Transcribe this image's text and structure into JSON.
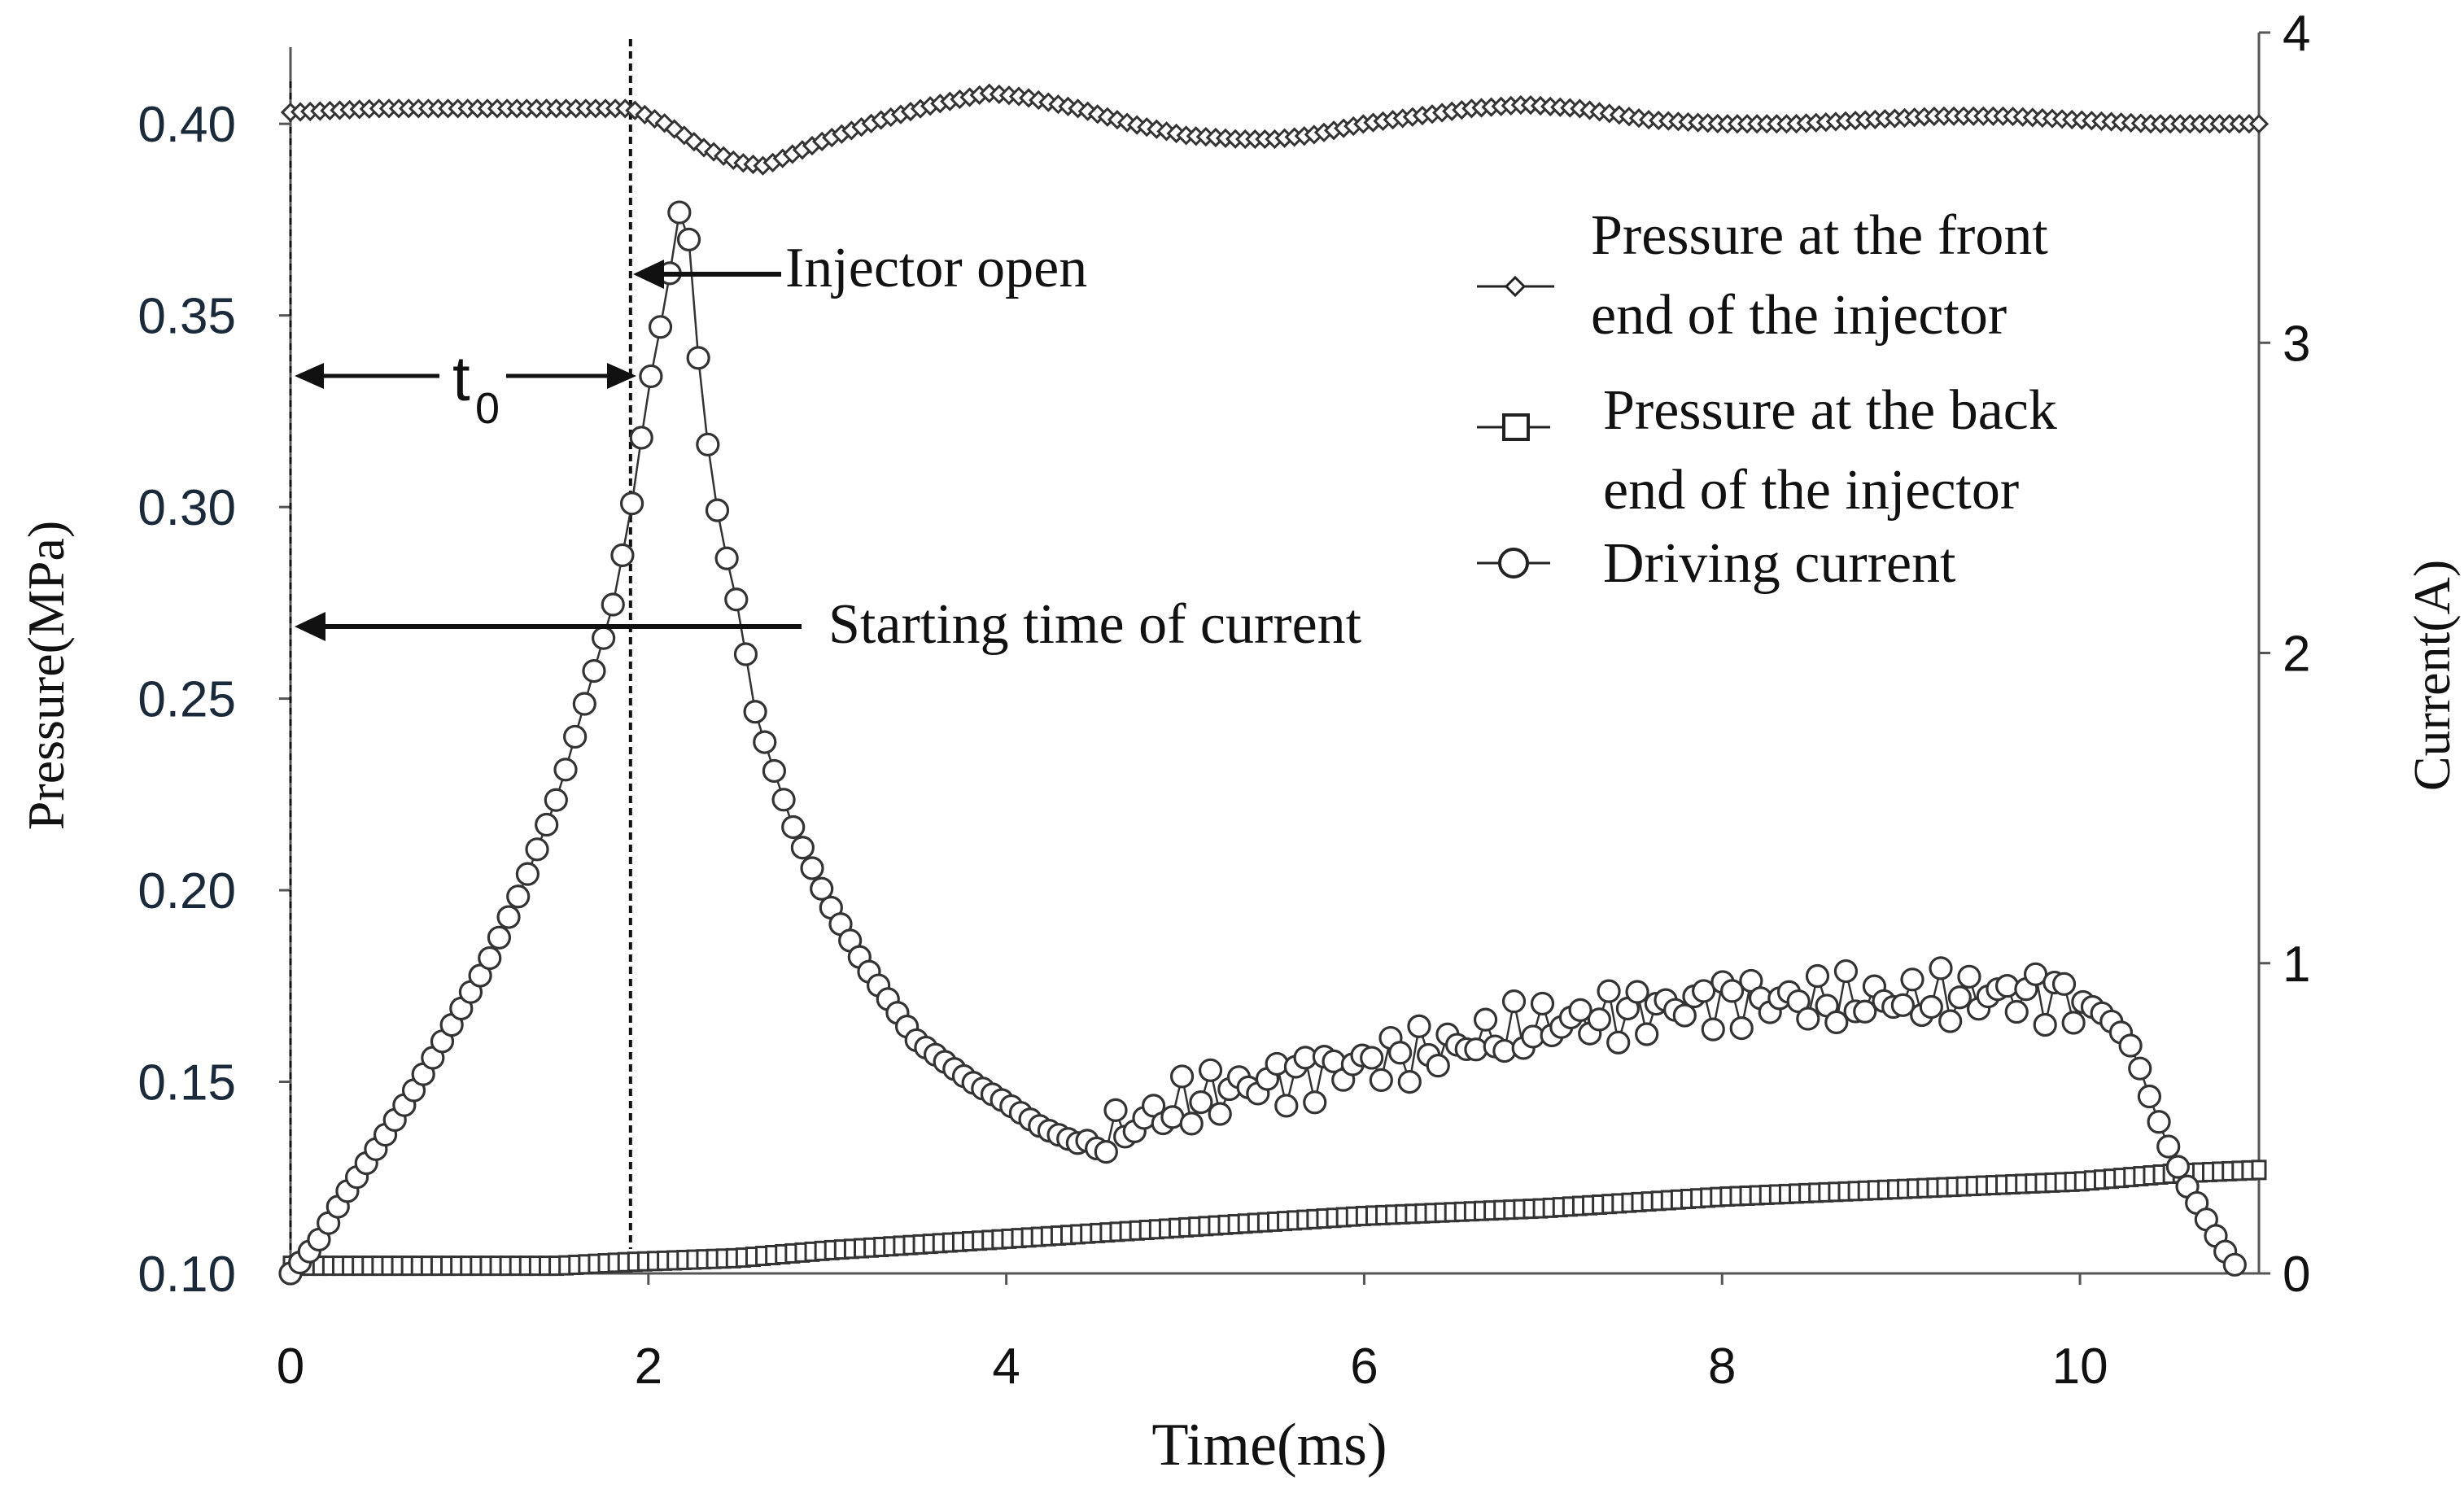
{
  "chart_data": {
    "type": "line",
    "title": "",
    "xlabel": "Time(ms)",
    "ylabel_left": "Pressure(MPa)",
    "ylabel_right": "Current(A)",
    "xlim": [
      0,
      11
    ],
    "ylim_left": [
      0.1,
      0.42
    ],
    "ylim_right": [
      0,
      4
    ],
    "x_ticks": [
      "0",
      "2",
      "4",
      "6",
      "8",
      "10"
    ],
    "y_left_ticks": [
      "0.10",
      "0.15",
      "0.20",
      "0.25",
      "0.30",
      "0.35",
      "0.40"
    ],
    "y_right_ticks": [
      "0",
      "1",
      "2",
      "3",
      "4"
    ],
    "grid": false,
    "legend_position": "top-right",
    "legend": [
      {
        "lines": [
          "Pressure at the front",
          "end of the injector"
        ],
        "marker": "diamond"
      },
      {
        "lines": [
          "Pressure at the back",
          "end of the injector"
        ],
        "marker": "square"
      },
      {
        "lines": [
          "Driving current"
        ],
        "marker": "circle"
      }
    ],
    "annotations": {
      "injector_open": "Injector open",
      "starting_time": "Starting time of current",
      "t0_main": "t",
      "t0_sub": "0",
      "starting_time_x": 0,
      "injector_open_x": 1.9
    },
    "series": [
      {
        "name": "Pressure at the front end of the injector",
        "axis": "left",
        "marker": "diamond",
        "x": [
          0,
          0.5,
          1.0,
          1.5,
          1.9,
          2.1,
          2.3,
          2.5,
          2.65,
          2.8,
          3.0,
          3.3,
          3.6,
          3.9,
          4.1,
          4.4,
          4.7,
          5.0,
          5.3,
          5.5,
          5.7,
          6.0,
          6.3,
          6.6,
          6.9,
          7.2,
          7.6,
          8.0,
          8.4,
          8.8,
          9.2,
          9.6,
          10.0,
          10.4,
          10.8,
          11.0
        ],
        "values": [
          0.403,
          0.404,
          0.404,
          0.404,
          0.404,
          0.4,
          0.394,
          0.39,
          0.389,
          0.392,
          0.396,
          0.401,
          0.405,
          0.408,
          0.407,
          0.404,
          0.4,
          0.397,
          0.396,
          0.396,
          0.397,
          0.4,
          0.402,
          0.404,
          0.405,
          0.404,
          0.401,
          0.4,
          0.4,
          0.401,
          0.402,
          0.402,
          0.401,
          0.4,
          0.4,
          0.4
        ]
      },
      {
        "name": "Pressure at the back end of the injector",
        "axis": "left",
        "marker": "square",
        "x": [
          0,
          0.5,
          1.0,
          1.5,
          1.9,
          2.5,
          3.0,
          4.0,
          5.0,
          6.0,
          7.0,
          8.0,
          9.0,
          10.0,
          10.5,
          11.0
        ],
        "values": [
          0.102,
          0.102,
          0.102,
          0.102,
          0.103,
          0.104,
          0.106,
          0.109,
          0.112,
          0.115,
          0.117,
          0.12,
          0.122,
          0.124,
          0.126,
          0.127
        ]
      },
      {
        "name": "Driving current",
        "axis": "right",
        "marker": "circle",
        "x": [
          0,
          0.15,
          0.3,
          0.5,
          0.7,
          0.9,
          1.1,
          1.3,
          1.5,
          1.7,
          1.8,
          1.9,
          2.0,
          2.1,
          2.2,
          2.3,
          2.4,
          2.5,
          2.6,
          2.8,
          3.0,
          3.2,
          3.5,
          3.8,
          4.0,
          4.2,
          4.4,
          4.6,
          4.8,
          5.0,
          5.3,
          5.6,
          6.0,
          6.5,
          7.0,
          7.5,
          8.0,
          8.5,
          9.0,
          9.5,
          9.8,
          10.0,
          10.1,
          10.2,
          10.3,
          10.4,
          10.5,
          10.6,
          10.7,
          10.8,
          10.9
        ],
        "values": [
          0.0,
          0.1,
          0.25,
          0.42,
          0.6,
          0.8,
          1.0,
          1.25,
          1.55,
          1.95,
          2.15,
          2.45,
          2.85,
          3.15,
          3.52,
          2.8,
          2.4,
          2.15,
          1.8,
          1.45,
          1.2,
          1.0,
          0.75,
          0.62,
          0.55,
          0.47,
          0.42,
          0.45,
          0.5,
          0.55,
          0.6,
          0.63,
          0.68,
          0.73,
          0.8,
          0.84,
          0.88,
          0.88,
          0.88,
          0.9,
          0.9,
          0.88,
          0.85,
          0.8,
          0.72,
          0.55,
          0.4,
          0.28,
          0.18,
          0.08,
          0.0
        ]
      }
    ]
  }
}
